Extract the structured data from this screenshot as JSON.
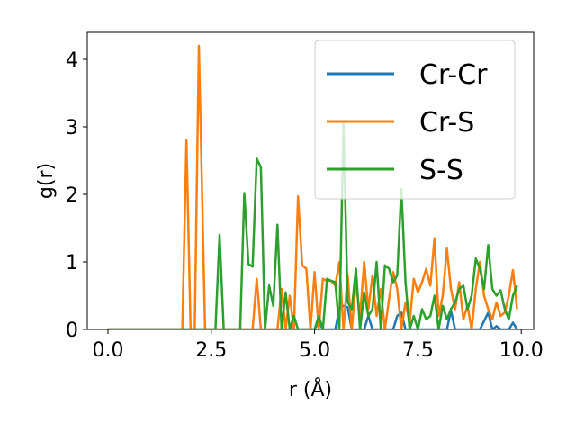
{
  "chart_data": {
    "type": "line",
    "xlabel": "r (Å)",
    "ylabel": "g(r)",
    "xlim": [
      -0.5,
      10.3
    ],
    "ylim": [
      0,
      4.4
    ],
    "xticks": [
      "0.0",
      "2.5",
      "5.0",
      "7.5",
      "10.0"
    ],
    "yticks": [
      "0",
      "1",
      "2",
      "3",
      "4"
    ],
    "grid": false,
    "legend_position": "top-right",
    "series": [
      {
        "name": "Cr-Cr",
        "color": "#1f77b4",
        "points": [
          [
            0,
            0
          ],
          [
            5.0,
            0
          ],
          [
            5.1,
            0.12
          ],
          [
            5.2,
            0
          ],
          [
            5.5,
            0
          ],
          [
            5.6,
            0.3
          ],
          [
            5.7,
            0.35
          ],
          [
            5.8,
            0.33
          ],
          [
            5.9,
            0
          ],
          [
            6.2,
            0
          ],
          [
            6.3,
            0.2
          ],
          [
            6.4,
            0
          ],
          [
            6.9,
            0
          ],
          [
            7.0,
            0.2
          ],
          [
            7.1,
            0.25
          ],
          [
            7.2,
            0
          ],
          [
            8.2,
            0
          ],
          [
            8.3,
            0.28
          ],
          [
            8.4,
            0
          ],
          [
            9.0,
            0
          ],
          [
            9.2,
            0.25
          ],
          [
            9.3,
            0
          ],
          [
            9.4,
            0.05
          ],
          [
            9.5,
            0
          ],
          [
            9.7,
            0
          ],
          [
            9.8,
            0.1
          ],
          [
            9.9,
            0
          ]
        ]
      },
      {
        "name": "Cr-S",
        "color": "#ff7f0e",
        "points": [
          [
            0,
            0
          ],
          [
            1.8,
            0
          ],
          [
            1.9,
            2.8
          ],
          [
            2.0,
            0
          ],
          [
            2.1,
            0
          ],
          [
            2.2,
            4.2
          ],
          [
            2.35,
            0
          ],
          [
            3.5,
            0
          ],
          [
            3.6,
            0.75
          ],
          [
            3.7,
            0
          ],
          [
            4.1,
            0
          ],
          [
            4.2,
            0.6
          ],
          [
            4.3,
            0
          ],
          [
            4.4,
            0.5
          ],
          [
            4.5,
            0
          ],
          [
            4.6,
            1.97
          ],
          [
            4.7,
            0.95
          ],
          [
            4.8,
            0.9
          ],
          [
            4.9,
            0
          ],
          [
            5.0,
            0.85
          ],
          [
            5.1,
            0
          ],
          [
            5.2,
            0.75
          ],
          [
            5.3,
            0.72
          ],
          [
            5.4,
            0.72
          ],
          [
            5.5,
            0.65
          ],
          [
            5.6,
            1.0
          ],
          [
            5.7,
            0
          ],
          [
            5.8,
            0.8
          ],
          [
            5.9,
            0
          ],
          [
            6.0,
            0.7
          ],
          [
            6.1,
            0.2
          ],
          [
            6.2,
            1.0
          ],
          [
            6.3,
            0.3
          ],
          [
            6.4,
            0.8
          ],
          [
            6.5,
            0.2
          ],
          [
            6.6,
            0.6
          ],
          [
            6.7,
            0
          ],
          [
            6.8,
            0.45
          ],
          [
            6.9,
            0.85
          ],
          [
            7.0,
            0.6
          ],
          [
            7.1,
            0
          ],
          [
            7.2,
            0.4
          ],
          [
            7.3,
            0.1
          ],
          [
            7.4,
            0.75
          ],
          [
            7.5,
            0.55
          ],
          [
            7.6,
            0.7
          ],
          [
            7.7,
            0.9
          ],
          [
            7.8,
            0.65
          ],
          [
            7.9,
            1.35
          ],
          [
            8.0,
            0.2
          ],
          [
            8.1,
            0.5
          ],
          [
            8.2,
            1.2
          ],
          [
            8.3,
            0.6
          ],
          [
            8.4,
            0.3
          ],
          [
            8.5,
            0.7
          ],
          [
            8.6,
            0.15
          ],
          [
            8.7,
            0.35
          ],
          [
            8.8,
            0
          ],
          [
            8.9,
            0.6
          ],
          [
            9.0,
            1.0
          ],
          [
            9.1,
            0.5
          ],
          [
            9.2,
            0.3
          ],
          [
            9.3,
            0.15
          ],
          [
            9.4,
            0.4
          ],
          [
            9.5,
            0.2
          ],
          [
            9.6,
            0.25
          ],
          [
            9.7,
            0.5
          ],
          [
            9.8,
            0.88
          ],
          [
            9.9,
            0.3
          ]
        ]
      },
      {
        "name": "S-S",
        "color": "#2ca02c",
        "points": [
          [
            0,
            0
          ],
          [
            2.6,
            0
          ],
          [
            2.7,
            1.4
          ],
          [
            2.8,
            0
          ],
          [
            3.2,
            0
          ],
          [
            3.3,
            2.02
          ],
          [
            3.4,
            0.97
          ],
          [
            3.5,
            0.93
          ],
          [
            3.6,
            2.53
          ],
          [
            3.7,
            2.4
          ],
          [
            3.8,
            0
          ],
          [
            3.9,
            0.65
          ],
          [
            4.0,
            0.35
          ],
          [
            4.1,
            1.55
          ],
          [
            4.2,
            0
          ],
          [
            4.3,
            0.55
          ],
          [
            4.4,
            0
          ],
          [
            4.5,
            0.2
          ],
          [
            4.6,
            0
          ],
          [
            5.0,
            0
          ],
          [
            5.1,
            0.2
          ],
          [
            5.2,
            0
          ],
          [
            5.3,
            0.75
          ],
          [
            5.4,
            0.72
          ],
          [
            5.5,
            0.7
          ],
          [
            5.6,
            0
          ],
          [
            5.7,
            3.05
          ],
          [
            5.8,
            0.4
          ],
          [
            5.9,
            0.3
          ],
          [
            6.0,
            0.9
          ],
          [
            6.1,
            0
          ],
          [
            6.2,
            0.55
          ],
          [
            6.3,
            0.2
          ],
          [
            6.4,
            0.3
          ],
          [
            6.5,
            1.0
          ],
          [
            6.6,
            0
          ],
          [
            6.7,
            0.95
          ],
          [
            6.8,
            0.9
          ],
          [
            6.9,
            0.7
          ],
          [
            7.0,
            0.8
          ],
          [
            7.1,
            2.08
          ],
          [
            7.2,
            0.7
          ],
          [
            7.3,
            0
          ],
          [
            7.4,
            0.2
          ],
          [
            7.5,
            0
          ],
          [
            7.6,
            0.3
          ],
          [
            7.7,
            0.15
          ],
          [
            7.8,
            0.2
          ],
          [
            7.9,
            0.5
          ],
          [
            8.0,
            0
          ],
          [
            8.1,
            0.35
          ],
          [
            8.2,
            0.15
          ],
          [
            8.3,
            0.3
          ],
          [
            8.4,
            0.4
          ],
          [
            8.5,
            0.6
          ],
          [
            8.6,
            0.65
          ],
          [
            8.7,
            0.3
          ],
          [
            8.8,
            0.5
          ],
          [
            8.9,
            1.05
          ],
          [
            9.0,
            0.9
          ],
          [
            9.1,
            0.6
          ],
          [
            9.2,
            1.25
          ],
          [
            9.3,
            0.6
          ],
          [
            9.4,
            0.5
          ],
          [
            9.5,
            0.58
          ],
          [
            9.6,
            0.3
          ],
          [
            9.7,
            0.15
          ],
          [
            9.8,
            0.5
          ],
          [
            9.9,
            0.65
          ]
        ]
      }
    ]
  }
}
